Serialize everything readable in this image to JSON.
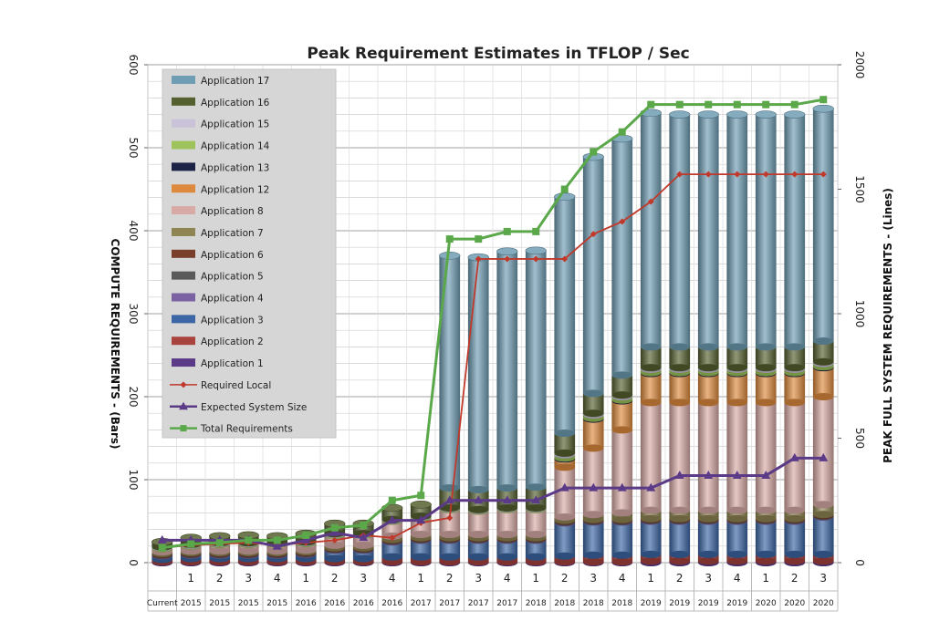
{
  "chart_data": {
    "type": "bar",
    "title": "Peak Requirement Estimates in TFLOP / Sec",
    "ylabel": "COMPUTE REQUIREMENTS - (Bars)",
    "y2label": "PEAK FULL SYSTEM REQUIREMENTS - (Lines)",
    "ylim": [
      0,
      600
    ],
    "y2lim": [
      0,
      2000
    ],
    "yticks": [
      "0",
      "100",
      "200",
      "300",
      "400",
      "500",
      "600"
    ],
    "y2ticks": [
      "0",
      "500",
      "1000",
      "1500",
      "2000"
    ],
    "grid": true,
    "legend_position": "top-left",
    "stacked": true,
    "categories": [
      [
        "",
        "Current"
      ],
      [
        "1",
        "2015"
      ],
      [
        "2",
        "2015"
      ],
      [
        "3",
        "2015"
      ],
      [
        "4",
        "2015"
      ],
      [
        "1",
        "2016"
      ],
      [
        "2",
        "2016"
      ],
      [
        "3",
        "2016"
      ],
      [
        "4",
        "2016"
      ],
      [
        "1",
        "2017"
      ],
      [
        "2",
        "2017"
      ],
      [
        "3",
        "2017"
      ],
      [
        "4",
        "2017"
      ],
      [
        "1",
        "2018"
      ],
      [
        "2",
        "2018"
      ],
      [
        "3",
        "2018"
      ],
      [
        "4",
        "2018"
      ],
      [
        "1",
        "2019"
      ],
      [
        "2",
        "2019"
      ],
      [
        "3",
        "2019"
      ],
      [
        "4",
        "2019"
      ],
      [
        "1",
        "2020"
      ],
      [
        "2",
        "2020"
      ],
      [
        "3",
        "2020"
      ]
    ],
    "series": [
      {
        "name": "Application 1",
        "color": "#5b3a87",
        "values": [
          1,
          1,
          1,
          1,
          1,
          1,
          1,
          1,
          1,
          1,
          1,
          1,
          1,
          1,
          1,
          1,
          1,
          2,
          2,
          2,
          2,
          2,
          2,
          2
        ]
      },
      {
        "name": "Application 2",
        "color": "#a8433e",
        "values": [
          3,
          4,
          4,
          4,
          4,
          4,
          4,
          4,
          6,
          6,
          6,
          6,
          6,
          6,
          7,
          8,
          8,
          8,
          8,
          8,
          8,
          8,
          8,
          8
        ]
      },
      {
        "name": "Application 3",
        "color": "#3c66a5",
        "values": [
          4,
          4,
          4,
          4,
          4,
          5,
          10,
          10,
          18,
          20,
          20,
          20,
          20,
          20,
          40,
          40,
          40,
          40,
          40,
          40,
          40,
          40,
          40,
          45
        ]
      },
      {
        "name": "Application 4",
        "color": "#7b63a3",
        "values": [
          1,
          1,
          1,
          1,
          1,
          1,
          1,
          1,
          1,
          1,
          1,
          1,
          1,
          1,
          1,
          1,
          1,
          1,
          1,
          1,
          1,
          1,
          1,
          1
        ]
      },
      {
        "name": "Application 5",
        "color": "#5a5a5a",
        "values": [
          1,
          1,
          1,
          1,
          1,
          1,
          1,
          1,
          1,
          1,
          1,
          1,
          1,
          1,
          1,
          1,
          1,
          1,
          1,
          1,
          1,
          1,
          1,
          1
        ]
      },
      {
        "name": "Application 6",
        "color": "#7a3f2a",
        "values": [
          1,
          1,
          1,
          1,
          1,
          1,
          1,
          1,
          1,
          1,
          1,
          1,
          1,
          1,
          1,
          1,
          1,
          1,
          1,
          1,
          1,
          1,
          1,
          1
        ]
      },
      {
        "name": "Application 7",
        "color": "#8f8552",
        "values": [
          2,
          2,
          2,
          2,
          2,
          2,
          3,
          3,
          4,
          4,
          4,
          4,
          4,
          4,
          4,
          6,
          8,
          10,
          10,
          10,
          10,
          10,
          10,
          12
        ]
      },
      {
        "name": "Application 8",
        "color": "#d8aaa6",
        "values": [
          4,
          6,
          8,
          8,
          8,
          8,
          12,
          12,
          18,
          20,
          30,
          28,
          30,
          30,
          60,
          80,
          100,
          130,
          130,
          130,
          130,
          130,
          130,
          130
        ]
      },
      {
        "name": "Application 12",
        "color": "#de8a3e",
        "values": [
          0,
          0,
          0,
          0,
          0,
          0,
          0,
          0,
          0,
          0,
          0,
          0,
          0,
          0,
          10,
          35,
          35,
          35,
          35,
          35,
          35,
          35,
          35,
          35
        ]
      },
      {
        "name": "Application 13",
        "color": "#1c2347",
        "values": [
          0,
          0,
          0,
          0,
          0,
          0,
          0,
          0,
          0,
          0,
          0,
          0,
          0,
          0,
          1,
          1,
          1,
          1,
          1,
          1,
          1,
          1,
          1,
          1
        ]
      },
      {
        "name": "Application 14",
        "color": "#9dc35a",
        "values": [
          1,
          1,
          1,
          1,
          1,
          1,
          1,
          1,
          1,
          1,
          1,
          1,
          1,
          1,
          4,
          4,
          4,
          4,
          4,
          4,
          4,
          4,
          4,
          4
        ]
      },
      {
        "name": "Application 15",
        "color": "#c9c2d8",
        "values": [
          1,
          1,
          1,
          1,
          1,
          1,
          1,
          1,
          1,
          1,
          1,
          1,
          1,
          1,
          2,
          2,
          2,
          2,
          2,
          2,
          2,
          2,
          2,
          2
        ]
      },
      {
        "name": "Application 16",
        "color": "#556030",
        "values": [
          6,
          8,
          8,
          9,
          8,
          10,
          12,
          12,
          14,
          14,
          24,
          24,
          24,
          25,
          24,
          24,
          24,
          25,
          25,
          25,
          25,
          25,
          25,
          25
        ]
      },
      {
        "name": "Application 17",
        "color": "#6f9db3",
        "values": [
          0,
          0,
          0,
          0,
          0,
          0,
          0,
          0,
          0,
          0,
          280,
          280,
          285,
          285,
          285,
          285,
          285,
          282,
          280,
          280,
          280,
          280,
          280,
          280
        ]
      }
    ],
    "lines": [
      {
        "name": "Required Local",
        "axis": "right",
        "color": "#c0392b",
        "marker": "diamond",
        "values": [
          60,
          70,
          75,
          80,
          70,
          80,
          90,
          110,
          100,
          160,
          180,
          1220,
          1220,
          1220,
          1220,
          1320,
          1370,
          1450,
          1560,
          1560,
          1560,
          1560,
          1560,
          1560
        ]
      },
      {
        "name": "Expected System Size",
        "axis": "right",
        "color": "#5b3a87",
        "marker": "triangle",
        "values": [
          90,
          90,
          90,
          90,
          65,
          90,
          120,
          100,
          170,
          170,
          250,
          250,
          250,
          250,
          300,
          300,
          300,
          300,
          350,
          350,
          350,
          350,
          420,
          420
        ]
      },
      {
        "name": "Total Requirements",
        "axis": "right",
        "color": "#5aa84a",
        "marker": "square",
        "values": [
          60,
          75,
          80,
          90,
          90,
          110,
          140,
          150,
          250,
          270,
          1300,
          1300,
          1330,
          1330,
          1500,
          1650,
          1730,
          1840,
          1840,
          1840,
          1840,
          1840,
          1840,
          1860
        ]
      }
    ],
    "legend": [
      {
        "name": "Application 17",
        "kind": "bar",
        "color": "#6f9db3"
      },
      {
        "name": "Application 16",
        "kind": "bar",
        "color": "#556030"
      },
      {
        "name": "Application 15",
        "kind": "bar",
        "color": "#c9c2d8"
      },
      {
        "name": "Application 14",
        "kind": "bar",
        "color": "#9dc35a"
      },
      {
        "name": "Application 13",
        "kind": "bar",
        "color": "#1c2347"
      },
      {
        "name": "Application 12",
        "kind": "bar",
        "color": "#de8a3e"
      },
      {
        "name": "Application 8",
        "kind": "bar",
        "color": "#d8aaa6"
      },
      {
        "name": "Application 7",
        "kind": "bar",
        "color": "#8f8552"
      },
      {
        "name": "Application 6",
        "kind": "bar",
        "color": "#7a3f2a"
      },
      {
        "name": "Application 5",
        "kind": "bar",
        "color": "#5a5a5a"
      },
      {
        "name": "Application 4",
        "kind": "bar",
        "color": "#7b63a3"
      },
      {
        "name": "Application 3",
        "kind": "bar",
        "color": "#3c66a5"
      },
      {
        "name": "Application 2",
        "kind": "bar",
        "color": "#a8433e"
      },
      {
        "name": "Application 1",
        "kind": "bar",
        "color": "#5b3a87"
      },
      {
        "name": "Required Local",
        "kind": "line",
        "marker": "diamond",
        "color": "#c0392b"
      },
      {
        "name": "Expected System Size",
        "kind": "line",
        "marker": "triangle",
        "color": "#5b3a87"
      },
      {
        "name": "Total Requirements",
        "kind": "line",
        "marker": "square",
        "color": "#5aa84a"
      }
    ]
  }
}
